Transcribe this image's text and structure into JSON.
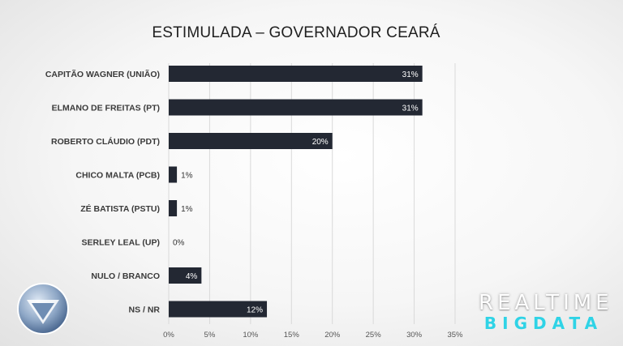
{
  "chart_data": {
    "type": "bar",
    "orientation": "horizontal",
    "title": "ESTIMULADA – GOVERNADOR CEARÁ",
    "categories": [
      "CAPITÃO WAGNER (UNIÃO)",
      "ELMANO DE FREITAS (PT)",
      "ROBERTO CLÁUDIO (PDT)",
      "CHICO MALTA (PCB)",
      "ZÉ BATISTA (PSTU)",
      "SERLEY LEAL (UP)",
      "NULO / BRANCO",
      "NS / NR"
    ],
    "values": [
      31,
      31,
      20,
      1,
      1,
      0,
      4,
      12
    ],
    "value_labels": [
      "31%",
      "31%",
      "20%",
      "1%",
      "1%",
      "0%",
      "4%",
      "12%"
    ],
    "x_ticks": [
      0,
      5,
      10,
      15,
      20,
      25,
      30,
      35
    ],
    "x_tick_labels": [
      "0%",
      "5%",
      "10%",
      "15%",
      "20%",
      "25%",
      "30%",
      "35%"
    ],
    "xlim": [
      0,
      35
    ],
    "grid": "vertical",
    "legend": "none",
    "bar_color": "#232833"
  },
  "brand": {
    "line1": "REALTIME",
    "line2": "BIGDATA",
    "accent_color": "#2fd3e6",
    "logo_icon": "record-tv-logo-icon"
  }
}
